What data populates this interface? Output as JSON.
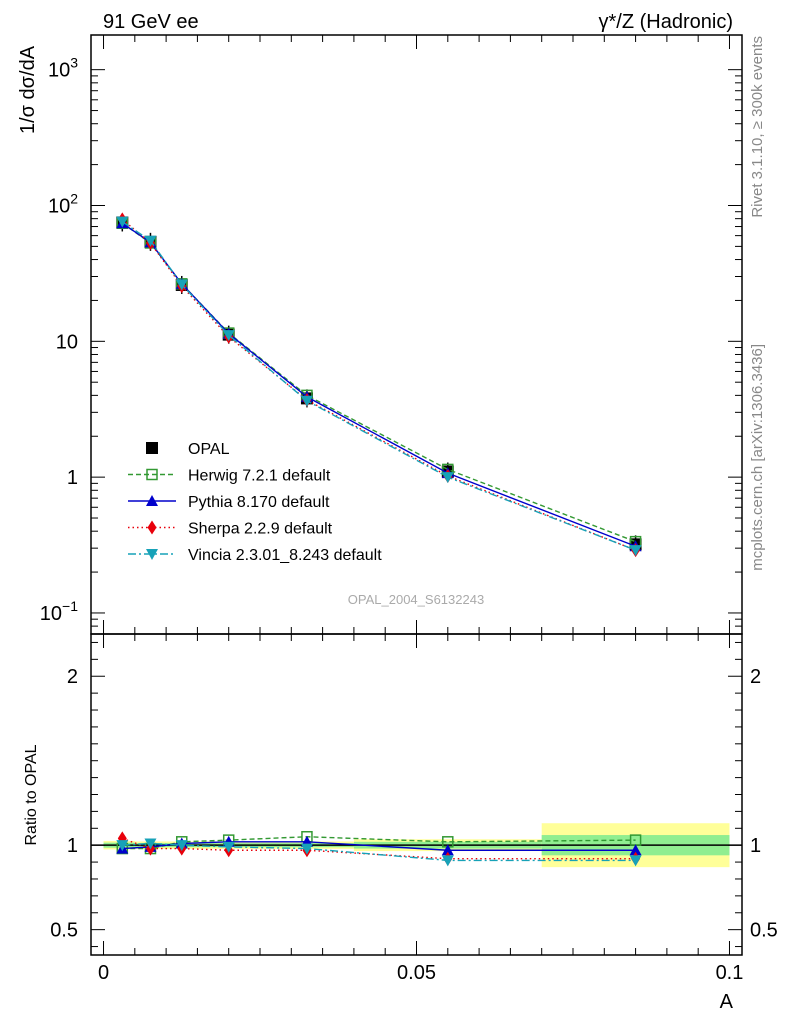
{
  "header": {
    "left": "91 GeV ee",
    "right": "γ*/Z (Hadronic)"
  },
  "side_text": {
    "top": "Rivet 3.1.10, ≥ 300k events",
    "bottom": "mcplots.cern.ch [arXiv:1306.3436]"
  },
  "watermark": "OPAL_2004_S6132243",
  "chart_data": [
    {
      "type": "line",
      "panel": "main",
      "ylabel": "1/σ dσ/dA",
      "yscale": "log",
      "ylim": [
        0.07,
        1800
      ],
      "xlim": [
        -0.002,
        0.102
      ],
      "y_ticks": [
        {
          "value": 0.1,
          "base": "10",
          "exp": "−1"
        },
        {
          "value": 1,
          "base": "1",
          "exp": ""
        },
        {
          "value": 10,
          "base": "10",
          "exp": ""
        },
        {
          "value": 100,
          "base": "10",
          "exp": "2"
        },
        {
          "value": 1000,
          "base": "10",
          "exp": "3"
        }
      ],
      "legend_position": "middle-left",
      "x": [
        0.003,
        0.0075,
        0.0125,
        0.02,
        0.0325,
        0.055,
        0.085
      ],
      "series": [
        {
          "name": "OPAL",
          "color": "#000000",
          "marker": "square-filled",
          "dash": "none",
          "errors": true,
          "values": [
            75,
            54,
            26,
            11.2,
            3.8,
            1.1,
            0.32
          ]
        },
        {
          "name": "Herwig 7.2.1 default",
          "color": "#339933",
          "marker": "square-open",
          "dash": "5,3",
          "values": [
            74,
            53,
            26.5,
            11.5,
            4.0,
            1.14,
            0.335
          ]
        },
        {
          "name": "Pythia 8.170 default",
          "color": "#0000cc",
          "marker": "triangle-up",
          "dash": "none",
          "values": [
            74,
            53.5,
            26.5,
            11.4,
            3.9,
            1.07,
            0.31
          ]
        },
        {
          "name": "Sherpa 2.2.9 default",
          "color": "#e8000b",
          "marker": "diamond",
          "dash": "1.5,3",
          "values": [
            79,
            53,
            25.5,
            10.8,
            3.7,
            1.02,
            0.29
          ]
        },
        {
          "name": "Vincia 2.3.01_8.243 default",
          "color": "#17a2b8",
          "marker": "triangle-down",
          "dash": "8,3,2,3",
          "values": [
            76,
            55,
            26.2,
            11.1,
            3.65,
            1.0,
            0.29
          ]
        }
      ]
    },
    {
      "type": "line",
      "panel": "ratio",
      "ylabel": "Ratio to OPAL",
      "ylim": [
        0.35,
        2.25
      ],
      "y_ticks": [
        0.5,
        1,
        2
      ],
      "y_tick_labels": [
        "0.5",
        "1",
        "2"
      ],
      "xlabel": "A",
      "x_ticks": [
        0,
        0.05,
        0.1
      ],
      "x_tick_labels": [
        "0",
        "0.05",
        "0.1"
      ],
      "x": [
        0.003,
        0.0075,
        0.0125,
        0.02,
        0.0325,
        0.055,
        0.085
      ],
      "bands": {
        "bin_edges": [
          0.0,
          0.005,
          0.01,
          0.015,
          0.025,
          0.04,
          0.07,
          0.1
        ],
        "stat": [
          0.015,
          0.012,
          0.012,
          0.012,
          0.012,
          0.02,
          0.06
        ],
        "total": [
          0.025,
          0.022,
          0.022,
          0.022,
          0.022,
          0.035,
          0.13
        ]
      },
      "series": [
        {
          "name": "Herwig 7.2.1 default",
          "values": [
            0.98,
            0.98,
            1.02,
            1.03,
            1.05,
            1.02,
            1.03
          ]
        },
        {
          "name": "Pythia 8.170 default",
          "values": [
            0.98,
            0.99,
            1.01,
            1.02,
            1.02,
            0.97,
            0.97
          ]
        },
        {
          "name": "Sherpa 2.2.9 default",
          "values": [
            1.04,
            0.98,
            0.98,
            0.97,
            0.97,
            0.92,
            0.92
          ]
        },
        {
          "name": "Vincia 2.3.01_8.243 default",
          "values": [
            1.0,
            1.01,
            1.0,
            0.99,
            0.98,
            0.91,
            0.91
          ]
        }
      ]
    }
  ]
}
